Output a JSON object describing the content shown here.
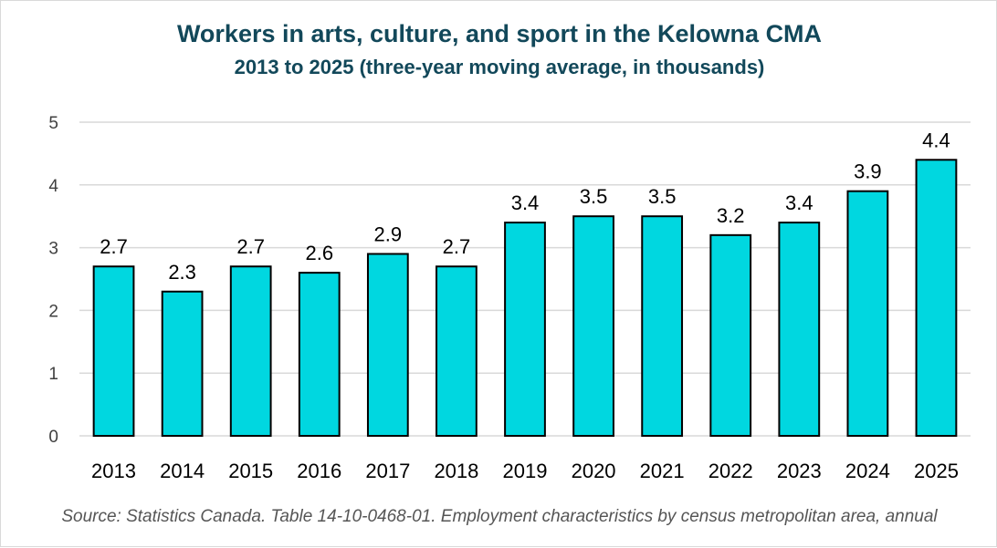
{
  "chart_data": {
    "type": "bar",
    "title": "Workers in arts, culture, and sport in the Kelowna CMA",
    "subtitle": "2013 to 2025 (three-year moving average, in thousands)",
    "categories": [
      "2013",
      "2014",
      "2015",
      "2016",
      "2017",
      "2018",
      "2019",
      "2020",
      "2021",
      "2022",
      "2023",
      "2024",
      "2025"
    ],
    "values": [
      2.7,
      2.3,
      2.7,
      2.6,
      2.9,
      2.7,
      3.4,
      3.5,
      3.5,
      3.2,
      3.4,
      3.9,
      4.4
    ],
    "data_labels": [
      "2.7",
      "2.3",
      "2.7",
      "2.6",
      "2.9",
      "2.7",
      "3.4",
      "3.5",
      "3.5",
      "3.2",
      "3.4",
      "3.9",
      "4.4"
    ],
    "yticks": [
      "0",
      "1",
      "2",
      "3",
      "4",
      "5"
    ],
    "ylim": [
      0,
      5
    ],
    "grid": true,
    "legend": "none",
    "bar_color": "#00d7e0",
    "bar_outline": "#000000",
    "source": "Source: Statistics Canada. Table 14-10-0468-01. Employment characteristics by census metropolitan area, annual"
  }
}
